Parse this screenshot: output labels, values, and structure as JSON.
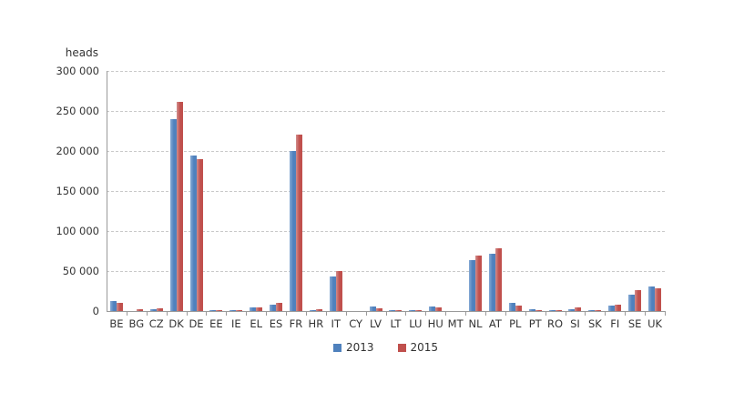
{
  "chart_data": {
    "type": "bar",
    "title": "",
    "ylabel": "heads",
    "xlabel": "",
    "ylim": [
      0,
      300000
    ],
    "grid": "horizontal-dashed",
    "legend_position": "bottom-center",
    "categories": [
      "BE",
      "BG",
      "CZ",
      "DK",
      "DE",
      "EE",
      "IE",
      "EL",
      "ES",
      "FR",
      "HR",
      "IT",
      "CY",
      "LV",
      "LT",
      "LU",
      "HU",
      "MT",
      "NL",
      "AT",
      "PL",
      "PT",
      "RO",
      "SI",
      "SK",
      "FI",
      "SE",
      "UK"
    ],
    "yticks": [
      {
        "value": 0,
        "label": "0"
      },
      {
        "value": 50000,
        "label": "50 000"
      },
      {
        "value": 100000,
        "label": "100 000"
      },
      {
        "value": 150000,
        "label": "150 000"
      },
      {
        "value": 200000,
        "label": "200 000"
      },
      {
        "value": 250000,
        "label": "250 000"
      },
      {
        "value": 300000,
        "label": "300 000"
      }
    ],
    "series": [
      {
        "name": "2013",
        "color": "#4F81BD",
        "color_light": "#85A9D4",
        "values": [
          12000,
          400,
          2500,
          240000,
          194000,
          1400,
          1300,
          4500,
          7700,
          200000,
          900,
          43000,
          150,
          5600,
          1400,
          1100,
          5800,
          100,
          64000,
          71500,
          10000,
          2400,
          1100,
          2800,
          1200,
          6500,
          20000,
          30500
        ]
      },
      {
        "name": "2015",
        "color": "#C0504D",
        "color_light": "#D28D8B",
        "values": [
          10500,
          2200,
          3000,
          261000,
          190000,
          1700,
          1600,
          4200,
          10200,
          220000,
          2100,
          50000,
          150,
          3600,
          1400,
          1400,
          4800,
          100,
          69000,
          78500,
          6800,
          1500,
          1500,
          4300,
          1500,
          7800,
          26500,
          28200
        ]
      }
    ]
  }
}
